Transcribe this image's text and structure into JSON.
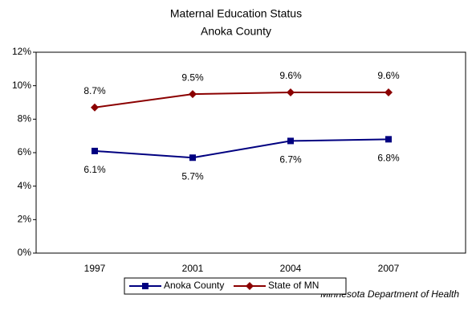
{
  "chart_data": {
    "type": "line",
    "title": "Maternal Education Status",
    "subtitle": "Anoka County",
    "categories": [
      "1997",
      "2001",
      "2004",
      "2007"
    ],
    "series": [
      {
        "name": "Anoka County",
        "color": "#000080",
        "marker": "square",
        "values": [
          6.1,
          5.7,
          6.7,
          6.8
        ],
        "value_labels": [
          "6.1%",
          "5.7%",
          "6.7%",
          "6.8%"
        ]
      },
      {
        "name": "State of MN",
        "color": "#8b0000",
        "marker": "diamond",
        "values": [
          8.7,
          9.5,
          9.6,
          9.6
        ],
        "value_labels": [
          "8.7%",
          "9.5%",
          "9.6%",
          "9.6%"
        ]
      }
    ],
    "ylim": [
      0,
      12
    ],
    "yticks": [
      {
        "value": 0,
        "label": "0%"
      },
      {
        "value": 2,
        "label": "2%"
      },
      {
        "value": 4,
        "label": "4%"
      },
      {
        "value": 6,
        "label": "6%"
      },
      {
        "value": 8,
        "label": "8%"
      },
      {
        "value": 10,
        "label": "10%"
      },
      {
        "value": 12,
        "label": "12%"
      }
    ],
    "legend": "bottom",
    "annotation": "Minnesota Department of Health"
  }
}
